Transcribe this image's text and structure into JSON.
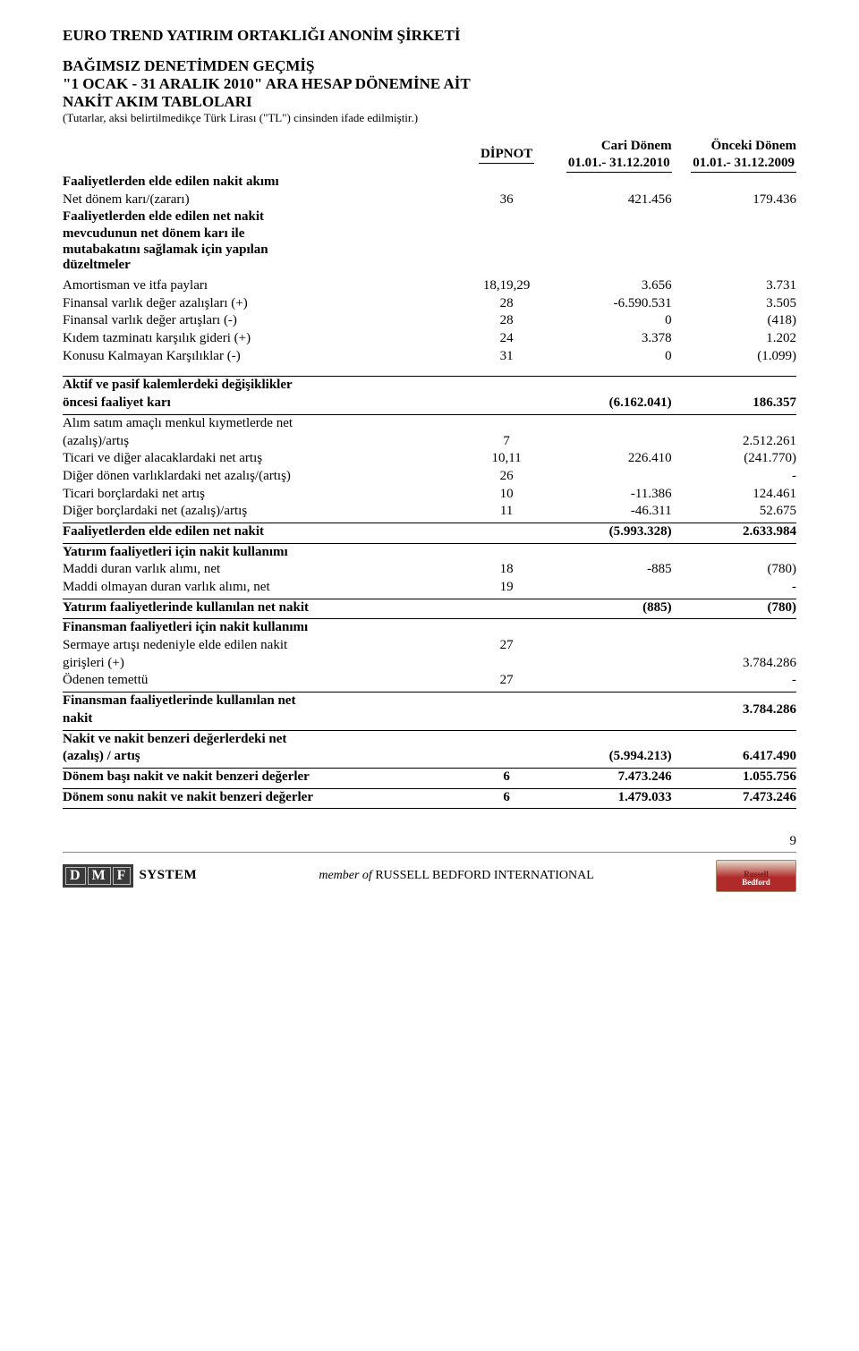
{
  "header": {
    "company": "EURO TREND YATIRIM ORTAKLIĞI ANONİM ŞİRKETİ",
    "line2": "BAĞIMSIZ DENETİMDEN GEÇMİŞ",
    "line3": "\"1 OCAK - 31 ARALIK 2010\" ARA HESAP DÖNEMİNE AİT",
    "line4": "NAKİT AKIM TABLOLARI",
    "sub": "(Tutarlar, aksi belirtilmedikçe Türk Lirası (\"TL\") cinsinden ifade edilmiştir.)"
  },
  "columns": {
    "dipnot": "DİPNOT",
    "cur1": "Cari Dönem",
    "cur2": "01.01.- 31.12.2010",
    "prev1": "Önceki Dönem",
    "prev2": "01.01.- 31.12.2009"
  },
  "sect_ops_cash": "Faaliyetlerden elde edilen nakit akımı",
  "r1": {
    "label": "Net dönem karı/(zararı)",
    "dip": "36",
    "cur": "421.456",
    "prev": "179.436"
  },
  "sect_adj1": "Faaliyetlerden elde edilen net nakit",
  "sect_adj2": "mevcudunun net dönem karı ile",
  "sect_adj3": "mutabakatını sağlamak için yapılan",
  "sect_adj4": "düzeltmeler",
  "r2": {
    "label": "Amortisman ve itfa payları",
    "dip": "18,19,29",
    "cur": "3.656",
    "prev": "3.731"
  },
  "r3": {
    "label": "Finansal varlık değer azalışları (+)",
    "dip": "28",
    "cur": "-6.590.531",
    "prev": "3.505"
  },
  "r4": {
    "label": "Finansal varlık değer artışları (-)",
    "dip": "28",
    "cur": "0",
    "prev": "(418)"
  },
  "r5": {
    "label": "Kıdem tazminatı karşılık gideri (+)",
    "dip": "24",
    "cur": "3.378",
    "prev": "1.202"
  },
  "r6": {
    "label": "Konusu Kalmayan Karşılıklar (-)",
    "dip": "31",
    "cur": "0",
    "prev": "(1.099)"
  },
  "sub1a": "Aktif ve pasif kalemlerdeki değişiklikler",
  "sub1b": "öncesi faaliyet karı",
  "sub1": {
    "cur": "(6.162.041)",
    "prev": "186.357"
  },
  "r7a": "Alım satım amaçlı menkul kıymetlerde net",
  "r7": {
    "label": "(azalış)/artış",
    "dip": "7",
    "cur": "",
    "prev": "2.512.261"
  },
  "r8": {
    "label": "Ticari ve diğer alacaklardaki net artış",
    "dip": "10,11",
    "cur": "226.410",
    "prev": "(241.770)"
  },
  "r9": {
    "label": "Diğer dönen varlıklardaki net azalış/(artış)",
    "dip": "26",
    "cur": "",
    "prev": "-"
  },
  "r10": {
    "label": "Ticari borçlardaki net artış",
    "dip": "10",
    "cur": "-11.386",
    "prev": "124.461"
  },
  "r11": {
    "label": "Diğer borçlardaki net (azalış)/artış",
    "dip": "11",
    "cur": "-46.311",
    "prev": "52.675"
  },
  "sub2": {
    "label": "Faaliyetlerden elde edilen net nakit",
    "cur": "(5.993.328)",
    "prev": "2.633.984"
  },
  "sect_inv": "Yatırım faaliyetleri için nakit kullanımı",
  "r12": {
    "label": "Maddi duran varlık alımı, net",
    "dip": "18",
    "cur": "-885",
    "prev": "(780)"
  },
  "r13": {
    "label": "Maddi olmayan duran varlık alımı, net",
    "dip": "19",
    "cur": "",
    "prev": "-"
  },
  "sub3": {
    "label": "Yatırım faaliyetlerinde kullanılan net nakit",
    "cur": "(885)",
    "prev": "(780)"
  },
  "sect_fin": "Finansman faaliyetleri için nakit kullanımı",
  "r14a": "Sermaye artışı nedeniyle elde edilen nakit",
  "r14": {
    "label": "girişleri (+)",
    "dip": "27",
    "cur": "",
    "prev": "3.784.286"
  },
  "r15": {
    "label": "Ödenen temettü",
    "dip": "27",
    "cur": "",
    "prev": "-"
  },
  "sub4a": "Finansman faaliyetlerinde kullanılan net",
  "sub4": {
    "label": "nakit",
    "cur": "",
    "prev": "3.784.286"
  },
  "r16a": "Nakit ve nakit benzeri değerlerdeki net",
  "r16": {
    "label": "(azalış) / artış",
    "cur": "(5.994.213)",
    "prev": "6.417.490"
  },
  "r17": {
    "label": "Dönem başı nakit ve nakit benzeri değerler",
    "dip": "6",
    "cur": "7.473.246",
    "prev": "1.055.756"
  },
  "r18": {
    "label": "Dönem sonu nakit ve nakit benzeri değerler",
    "dip": "6",
    "cur": "1.479.033",
    "prev": "7.473.246"
  },
  "page_number": "9",
  "footer": {
    "dmf": "DMF",
    "system": "SYSTEM",
    "center_prefix": "member of ",
    "center_bold": "RUSSELL BEDFORD INTERNATIONAL",
    "badge1": "Russell",
    "badge2": "Bedford"
  }
}
